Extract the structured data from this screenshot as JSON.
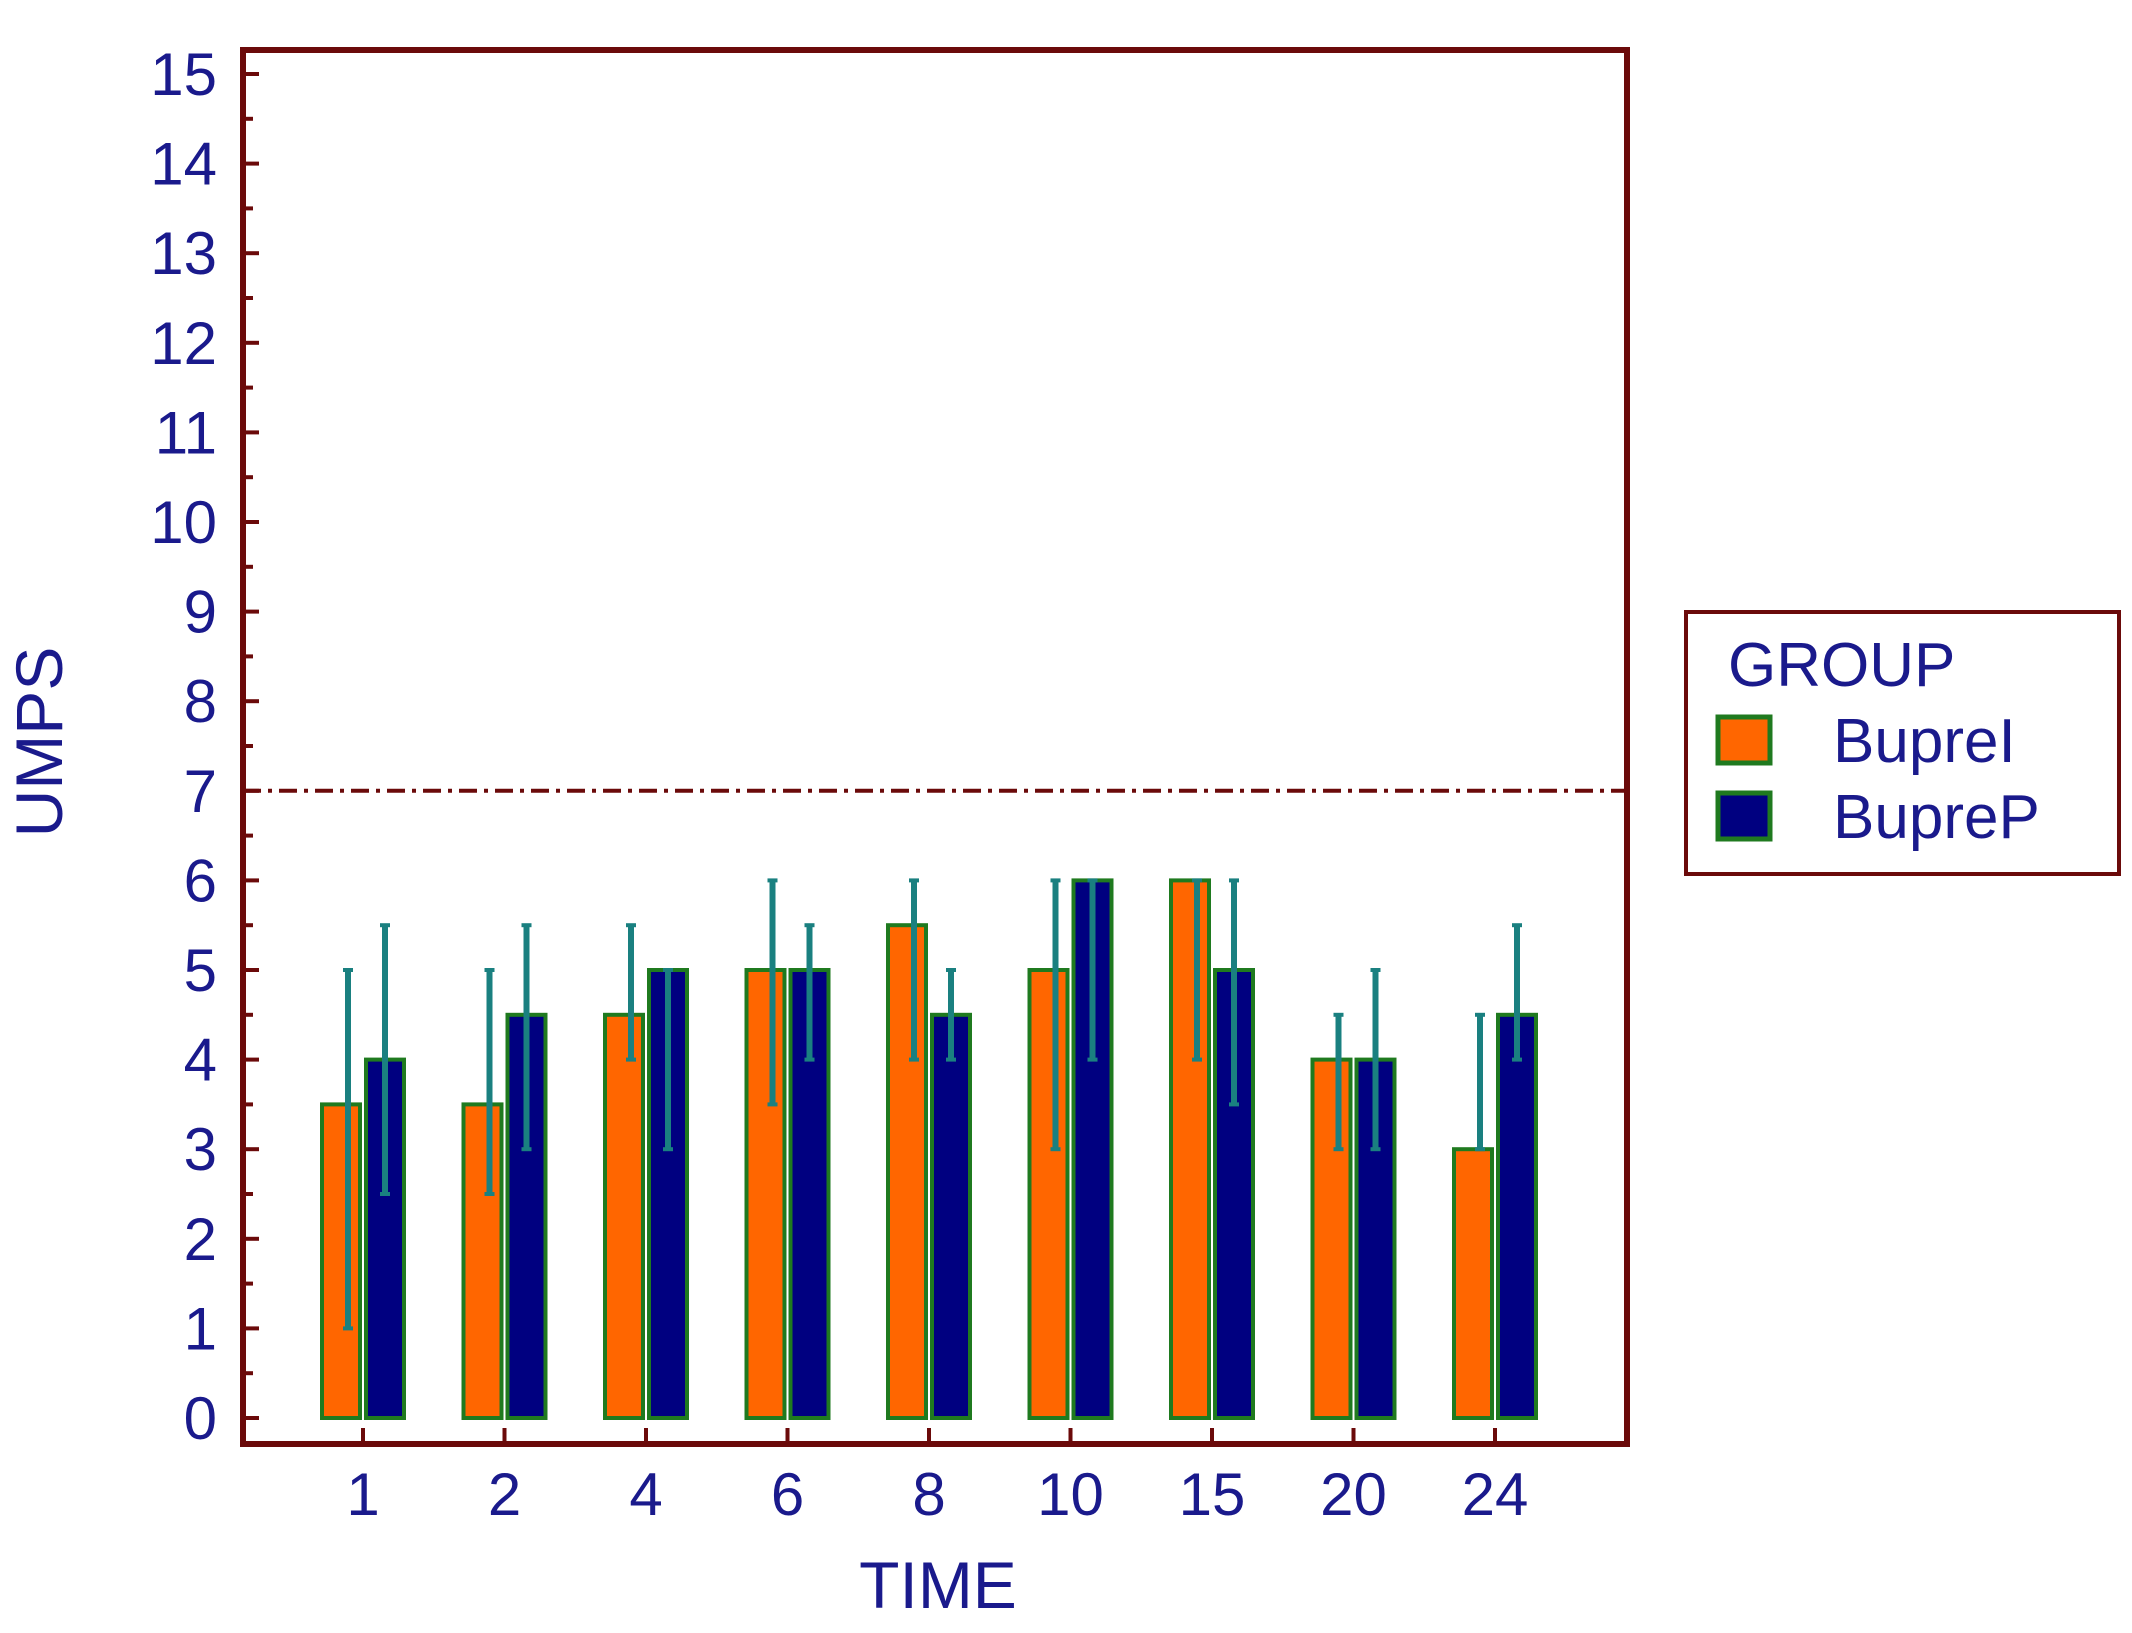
{
  "chart_data": {
    "type": "bar",
    "title": "",
    "xlabel": "TIME",
    "ylabel": "UMPS",
    "categories": [
      "1",
      "2",
      "4",
      "6",
      "8",
      "10",
      "15",
      "20",
      "24"
    ],
    "ylim": [
      0,
      15
    ],
    "yticks": [
      "0",
      "1",
      "2",
      "3",
      "4",
      "5",
      "6",
      "7",
      "8",
      "9",
      "10",
      "11",
      "12",
      "13",
      "14",
      "15"
    ],
    "reference_line": 7,
    "legend": {
      "title": "GROUP",
      "position": "right"
    },
    "series": [
      {
        "name": "BupreI",
        "color": "#ff6600",
        "values": [
          3.5,
          3.5,
          4.5,
          5,
          5.5,
          5,
          6,
          4,
          3
        ],
        "error_low": [
          1,
          2.5,
          4,
          3.5,
          4,
          3,
          4,
          3,
          3
        ],
        "error_high": [
          5,
          5,
          5.5,
          6,
          6,
          6,
          6,
          4.5,
          4.5
        ]
      },
      {
        "name": "BupreP",
        "color": "#000080",
        "values": [
          4,
          4.5,
          5,
          5,
          4.5,
          6,
          5,
          4,
          4.5
        ],
        "error_low": [
          2.5,
          3,
          3,
          4,
          4,
          4,
          3.5,
          3,
          4
        ],
        "error_high": [
          5.5,
          5.5,
          5,
          5.5,
          5,
          6,
          6,
          5,
          5.5
        ]
      }
    ],
    "colors": {
      "frame": "#6b0a0a",
      "bar_border": "#1f7a1f",
      "error_bar": "#1a8080",
      "text": "#1a1a8c"
    }
  }
}
